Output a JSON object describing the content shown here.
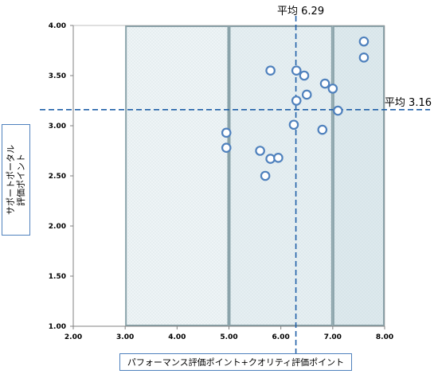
{
  "chart_data": {
    "type": "scatter",
    "xlabel": "パフォーマンス評価ポイント+クオリティ評価ポイント",
    "ylabel": "サポートポータル\n評価ポイント",
    "xlim": [
      2.0,
      8.0
    ],
    "ylim": [
      1.0,
      4.0
    ],
    "x_ticks": [
      "2.00",
      "3.00",
      "4.00",
      "5.00",
      "6.00",
      "7.00",
      "8.00"
    ],
    "y_ticks": [
      "1.00",
      "1.50",
      "2.00",
      "2.50",
      "3.00",
      "3.50",
      "4.00"
    ],
    "x_tick_values": [
      2,
      3,
      4,
      5,
      6,
      7,
      8
    ],
    "y_tick_values": [
      1.0,
      1.5,
      2.0,
      2.5,
      3.0,
      3.5,
      4.0
    ],
    "shaded_regions_x": [
      [
        3,
        5
      ],
      [
        5,
        7
      ],
      [
        7,
        8
      ]
    ],
    "x_mean": {
      "value": 6.29,
      "label": "平均 6.29"
    },
    "y_mean": {
      "value": 3.16,
      "label": "平均 3.16"
    },
    "points": [
      {
        "x": 7.6,
        "y": 3.84
      },
      {
        "x": 7.6,
        "y": 3.68
      },
      {
        "x": 5.8,
        "y": 3.55
      },
      {
        "x": 6.3,
        "y": 3.55
      },
      {
        "x": 6.45,
        "y": 3.5
      },
      {
        "x": 6.85,
        "y": 3.42
      },
      {
        "x": 7.0,
        "y": 3.37
      },
      {
        "x": 6.5,
        "y": 3.31
      },
      {
        "x": 6.3,
        "y": 3.25
      },
      {
        "x": 7.1,
        "y": 3.15
      },
      {
        "x": 6.25,
        "y": 3.01
      },
      {
        "x": 6.8,
        "y": 2.96
      },
      {
        "x": 4.95,
        "y": 2.93
      },
      {
        "x": 4.95,
        "y": 2.78
      },
      {
        "x": 5.6,
        "y": 2.75
      },
      {
        "x": 5.8,
        "y": 2.67
      },
      {
        "x": 5.95,
        "y": 2.68
      },
      {
        "x": 5.7,
        "y": 2.5
      }
    ],
    "grid": false
  },
  "colors": {
    "axis": "#808080",
    "band_light": "#eef4f6",
    "band_mid": "#e6eff2",
    "band_dark": "#dde9ed",
    "band_border": "#8aa3aa",
    "mean_line": "#1f5fa8",
    "marker": "#4f81bd"
  }
}
